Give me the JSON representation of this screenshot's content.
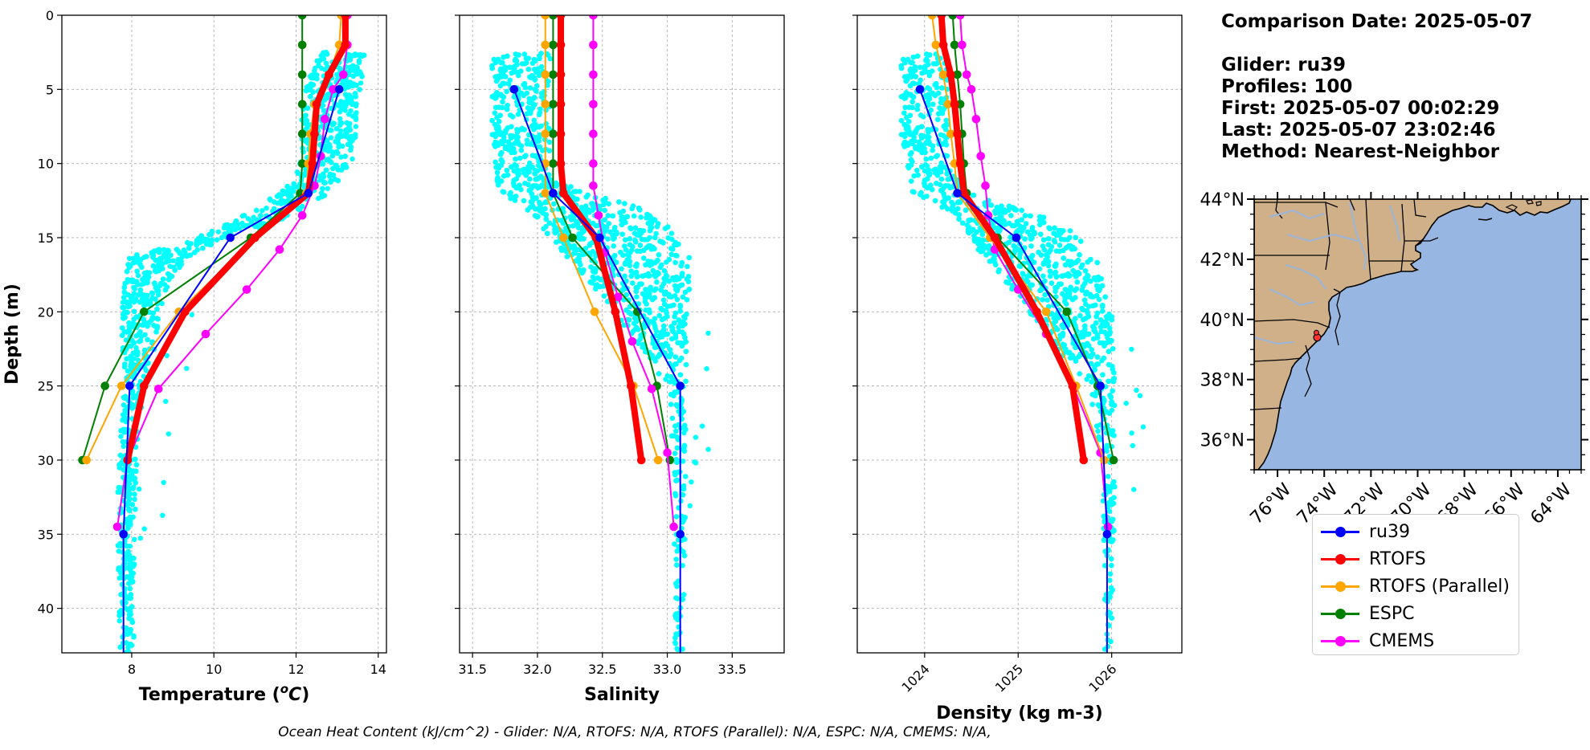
{
  "info": {
    "comparison": "Comparison Date: 2025-05-07",
    "glider": "Glider: ru39",
    "profiles": "Profiles: 100",
    "first": "First: 2025-05-07 00:02:29",
    "last": "Last: 2025-05-07 23:02:46",
    "method": "Method: Nearest-Neighbor"
  },
  "footer": "Ocean Heat Content (kJ/cm^2) - Glider: N/A,  RTOFS: N/A,  RTOFS (Parallel): N/A,  ESPC: N/A,  CMEMS: N/A,",
  "legend": [
    {
      "name": "ru39",
      "color": "#0000ff"
    },
    {
      "name": "RTOFS",
      "color": "#ff0000"
    },
    {
      "name": "RTOFS (Parallel)",
      "color": "#ffa500"
    },
    {
      "name": "ESPC",
      "color": "#008000"
    },
    {
      "name": "CMEMS",
      "color": "#ff00ff"
    }
  ],
  "chart_data": [
    {
      "type": "line",
      "ylabel": "Depth (m)",
      "xlabel": "Temperature (°C)",
      "xlim": [
        6.3,
        14.2
      ],
      "ylim": [
        43,
        0
      ],
      "xticks": [
        "8",
        "10",
        "12",
        "14"
      ],
      "yticks": [
        "0",
        "5",
        "10",
        "15",
        "20",
        "25",
        "30",
        "35",
        "40"
      ],
      "grid": true,
      "glider_scatter_color": "#00ffff",
      "glider_envelope": [
        [
          12.6,
          2.5
        ],
        [
          13.7,
          2.5
        ],
        [
          13.5,
          6
        ],
        [
          13.4,
          10
        ],
        [
          12.8,
          12
        ],
        [
          12.2,
          13
        ],
        [
          11.5,
          14
        ],
        [
          10.3,
          15
        ],
        [
          9.3,
          16.5
        ],
        [
          8.9,
          18
        ],
        [
          8.7,
          20
        ],
        [
          8.6,
          22
        ],
        [
          8.4,
          24
        ],
        [
          8.2,
          27
        ],
        [
          8.1,
          32
        ],
        [
          8.05,
          43
        ],
        [
          7.7,
          43
        ],
        [
          7.65,
          32
        ],
        [
          7.8,
          25
        ],
        [
          7.75,
          20
        ],
        [
          7.9,
          16.2
        ],
        [
          9.1,
          15.5
        ],
        [
          10.4,
          14
        ],
        [
          11.0,
          13
        ],
        [
          11.6,
          12
        ],
        [
          12.0,
          11
        ],
        [
          12.1,
          8
        ],
        [
          12.2,
          5
        ]
      ],
      "series": [
        {
          "name": "ru39",
          "color": "#0000ff",
          "width": 2,
          "points": [
            [
              13.05,
              5
            ],
            [
              12.3,
              12
            ],
            [
              10.4,
              15
            ],
            [
              7.95,
              25
            ],
            [
              7.8,
              35
            ],
            [
              7.8,
              43
            ]
          ]
        },
        {
          "name": "RTOFS",
          "color": "#ff0000",
          "width": 8,
          "points": [
            [
              13.2,
              0
            ],
            [
              13.2,
              2
            ],
            [
              12.8,
              4
            ],
            [
              12.5,
              6
            ],
            [
              12.45,
              8
            ],
            [
              12.4,
              10
            ],
            [
              12.3,
              12
            ],
            [
              11.0,
              15
            ],
            [
              9.3,
              20
            ],
            [
              8.3,
              25
            ],
            [
              7.9,
              30
            ]
          ]
        },
        {
          "name": "RTOFS (Parallel)",
          "color": "#ffa500",
          "width": 2,
          "points": [
            [
              13.1,
              0
            ],
            [
              13.05,
              2
            ],
            [
              12.8,
              4
            ],
            [
              12.45,
              6
            ],
            [
              12.35,
              8
            ],
            [
              12.3,
              10
            ],
            [
              12.25,
              12
            ],
            [
              11.0,
              15
            ],
            [
              9.15,
              20
            ],
            [
              7.75,
              25
            ],
            [
              6.9,
              30
            ]
          ]
        },
        {
          "name": "ESPC",
          "color": "#008000",
          "width": 2,
          "points": [
            [
              12.15,
              0
            ],
            [
              12.15,
              2
            ],
            [
              12.15,
              4
            ],
            [
              12.15,
              6
            ],
            [
              12.15,
              8
            ],
            [
              12.15,
              10
            ],
            [
              12.1,
              12
            ],
            [
              10.9,
              15
            ],
            [
              8.3,
              20
            ],
            [
              7.35,
              25
            ],
            [
              6.8,
              30
            ]
          ]
        },
        {
          "name": "CMEMS",
          "color": "#ff00ff",
          "width": 2,
          "points": [
            [
              13.25,
              0
            ],
            [
              13.25,
              2
            ],
            [
              13.15,
              4
            ],
            [
              12.9,
              5
            ],
            [
              12.7,
              7
            ],
            [
              12.6,
              9.5
            ],
            [
              12.45,
              11.5
            ],
            [
              12.15,
              13.5
            ],
            [
              11.6,
              15.8
            ],
            [
              10.8,
              18.5
            ],
            [
              9.8,
              21.5
            ],
            [
              8.65,
              25.2
            ],
            [
              7.9,
              30
            ],
            [
              7.65,
              34.5
            ]
          ]
        }
      ]
    },
    {
      "type": "line",
      "xlabel": "Salinity",
      "xlim": [
        31.4,
        33.9
      ],
      "ylim": [
        43,
        0
      ],
      "xticks": [
        "31.5",
        "32.0",
        "32.5",
        "33.0",
        "33.5"
      ],
      "grid": true,
      "glider_scatter_color": "#00ffff",
      "glider_envelope": [
        [
          31.65,
          2.5
        ],
        [
          32.1,
          2.5
        ],
        [
          32.1,
          11
        ],
        [
          32.4,
          12
        ],
        [
          32.8,
          13
        ],
        [
          33.0,
          14
        ],
        [
          33.2,
          16.5
        ],
        [
          33.15,
          20
        ],
        [
          33.15,
          28
        ],
        [
          33.12,
          43
        ],
        [
          33.06,
          43
        ],
        [
          33.05,
          30
        ],
        [
          33.0,
          25
        ],
        [
          32.75,
          22
        ],
        [
          32.5,
          19
        ],
        [
          32.2,
          16
        ],
        [
          31.9,
          13
        ],
        [
          31.7,
          12
        ],
        [
          31.65,
          8
        ]
      ],
      "series": [
        {
          "name": "ru39",
          "color": "#0000ff",
          "width": 2,
          "points": [
            [
              31.82,
              5
            ],
            [
              32.12,
              12
            ],
            [
              32.48,
              15
            ],
            [
              33.1,
              25
            ],
            [
              33.1,
              35
            ],
            [
              33.1,
              43
            ]
          ]
        },
        {
          "name": "RTOFS",
          "color": "#ff0000",
          "width": 8,
          "points": [
            [
              32.18,
              0
            ],
            [
              32.18,
              2
            ],
            [
              32.18,
              4
            ],
            [
              32.18,
              6
            ],
            [
              32.18,
              8
            ],
            [
              32.18,
              10
            ],
            [
              32.2,
              12
            ],
            [
              32.45,
              15
            ],
            [
              32.6,
              20
            ],
            [
              32.72,
              25
            ],
            [
              32.8,
              30
            ]
          ]
        },
        {
          "name": "RTOFS (Parallel)",
          "color": "#ffa500",
          "width": 2,
          "points": [
            [
              32.06,
              0
            ],
            [
              32.06,
              2
            ],
            [
              32.06,
              4
            ],
            [
              32.06,
              6
            ],
            [
              32.06,
              8
            ],
            [
              32.06,
              10
            ],
            [
              32.06,
              12
            ],
            [
              32.2,
              15
            ],
            [
              32.44,
              20
            ],
            [
              32.74,
              25
            ],
            [
              32.93,
              30
            ]
          ]
        },
        {
          "name": "ESPC",
          "color": "#008000",
          "width": 2,
          "points": [
            [
              32.12,
              0
            ],
            [
              32.12,
              2
            ],
            [
              32.12,
              4
            ],
            [
              32.12,
              6
            ],
            [
              32.12,
              8
            ],
            [
              32.12,
              10
            ],
            [
              32.12,
              12
            ],
            [
              32.27,
              15
            ],
            [
              32.77,
              20
            ],
            [
              32.92,
              25
            ],
            [
              33.02,
              30
            ]
          ]
        },
        {
          "name": "CMEMS",
          "color": "#ff00ff",
          "width": 2,
          "points": [
            [
              32.43,
              0
            ],
            [
              32.43,
              2
            ],
            [
              32.43,
              4
            ],
            [
              32.43,
              6
            ],
            [
              32.43,
              8
            ],
            [
              32.43,
              10
            ],
            [
              32.43,
              11.5
            ],
            [
              32.47,
              13.5
            ],
            [
              32.52,
              16
            ],
            [
              32.62,
              19
            ],
            [
              32.73,
              22
            ],
            [
              32.88,
              25.2
            ],
            [
              33.0,
              29.5
            ],
            [
              33.05,
              34.5
            ]
          ]
        }
      ]
    },
    {
      "type": "line",
      "xlabel": "Density (kg m-3)",
      "xlim": [
        1023.28,
        1026.75
      ],
      "ylim": [
        43,
        0
      ],
      "xticks": [
        "1024",
        "1025",
        "1026"
      ],
      "grid": true,
      "glider_scatter_color": "#00ffff",
      "glider_envelope": [
        [
          1023.75,
          2.5
        ],
        [
          1024.25,
          2.5
        ],
        [
          1024.25,
          10
        ],
        [
          1024.5,
          12
        ],
        [
          1025.0,
          13
        ],
        [
          1025.5,
          14
        ],
        [
          1025.85,
          16.5
        ],
        [
          1026.0,
          20
        ],
        [
          1026.05,
          28
        ],
        [
          1026.0,
          43
        ],
        [
          1025.92,
          43
        ],
        [
          1025.9,
          30
        ],
        [
          1025.75,
          25
        ],
        [
          1025.35,
          22
        ],
        [
          1025.0,
          19
        ],
        [
          1024.6,
          16
        ],
        [
          1024.2,
          13
        ],
        [
          1023.85,
          12
        ],
        [
          1023.75,
          8
        ]
      ],
      "series": [
        {
          "name": "ru39",
          "color": "#0000ff",
          "width": 2,
          "points": [
            [
              1023.95,
              5
            ],
            [
              1024.35,
              12
            ],
            [
              1024.98,
              15
            ],
            [
              1025.88,
              25
            ],
            [
              1025.95,
              35
            ],
            [
              1025.95,
              43
            ]
          ]
        },
        {
          "name": "RTOFS",
          "color": "#ff0000",
          "width": 8,
          "points": [
            [
              1024.18,
              0
            ],
            [
              1024.2,
              2
            ],
            [
              1024.28,
              4
            ],
            [
              1024.32,
              6
            ],
            [
              1024.35,
              8
            ],
            [
              1024.38,
              10
            ],
            [
              1024.42,
              12
            ],
            [
              1024.75,
              15
            ],
            [
              1025.2,
              20
            ],
            [
              1025.58,
              25
            ],
            [
              1025.7,
              30
            ]
          ]
        },
        {
          "name": "RTOFS (Parallel)",
          "color": "#ffa500",
          "width": 2,
          "points": [
            [
              1024.08,
              0
            ],
            [
              1024.12,
              2
            ],
            [
              1024.2,
              4
            ],
            [
              1024.25,
              6
            ],
            [
              1024.28,
              8
            ],
            [
              1024.32,
              10
            ],
            [
              1024.35,
              12
            ],
            [
              1024.7,
              15
            ],
            [
              1025.3,
              20
            ],
            [
              1025.62,
              25
            ],
            [
              1025.92,
              30
            ]
          ]
        },
        {
          "name": "ESPC",
          "color": "#008000",
          "width": 2,
          "points": [
            [
              1024.3,
              0
            ],
            [
              1024.32,
              2
            ],
            [
              1024.35,
              4
            ],
            [
              1024.38,
              6
            ],
            [
              1024.4,
              8
            ],
            [
              1024.42,
              10
            ],
            [
              1024.45,
              12
            ],
            [
              1024.78,
              15
            ],
            [
              1025.52,
              20
            ],
            [
              1025.85,
              25
            ],
            [
              1026.02,
              30
            ]
          ]
        },
        {
          "name": "CMEMS",
          "color": "#ff00ff",
          "width": 2,
          "points": [
            [
              1024.38,
              0
            ],
            [
              1024.4,
              2
            ],
            [
              1024.45,
              4
            ],
            [
              1024.5,
              5
            ],
            [
              1024.55,
              7
            ],
            [
              1024.6,
              9.5
            ],
            [
              1024.65,
              11.5
            ],
            [
              1024.68,
              13.5
            ],
            [
              1024.75,
              15.8
            ],
            [
              1025.0,
              18.5
            ],
            [
              1025.3,
              21.5
            ],
            [
              1025.6,
              25.2
            ],
            [
              1025.88,
              29.5
            ],
            [
              1025.96,
              34.5
            ]
          ]
        }
      ]
    },
    {
      "type": "map",
      "lon_range": [
        -77,
        -63
      ],
      "lat_range": [
        35,
        44
      ],
      "xticks": [
        "76°W",
        "74°W",
        "72°W",
        "70°W",
        "68°W",
        "66°W",
        "64°W"
      ],
      "yticks": [
        "44°N",
        "42°N",
        "40°N",
        "38°N",
        "36°N"
      ],
      "ocean_color": "#97b6e1",
      "land_color": "#d0b088",
      "marker": {
        "lon": -74.3,
        "lat": 39.4,
        "color": "#ff3333"
      }
    }
  ]
}
